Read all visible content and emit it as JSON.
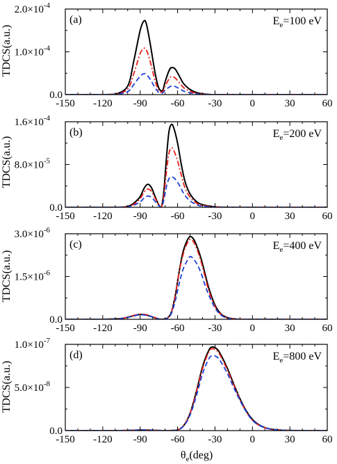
{
  "figure": {
    "ylabel": "TDCS(a.u.)",
    "xlabel_symbol": "θ",
    "xlabel_sub": "e",
    "xlabel_rest": "(deg)"
  },
  "chart_data": [
    {
      "type": "line",
      "panel_tag": "(a)",
      "energy": {
        "prefix": "E",
        "sub": "e",
        "suffix": "=100 eV"
      },
      "xlim": [
        -150,
        60
      ],
      "xticks": [
        -150,
        -120,
        -90,
        -60,
        -30,
        0,
        30,
        60
      ],
      "ylim": [
        0,
        0.0002
      ],
      "yticks": [
        {
          "value": 0,
          "mantissa": "0.0",
          "exp": ""
        },
        {
          "value": 0.0001,
          "mantissa": "1.0×10",
          "exp": "-4"
        },
        {
          "value": 0.0002,
          "mantissa": "2.0×10",
          "exp": "-4"
        }
      ],
      "series": [
        {
          "color": "#000000",
          "dash": "solid",
          "x": [
            -150,
            -120,
            -110,
            -100,
            -95,
            -90,
            -87,
            -85,
            -82,
            -78,
            -75,
            -72,
            -70,
            -67,
            -65,
            -62,
            -58,
            -55,
            -50,
            -45,
            -40,
            -30,
            0,
            60
          ],
          "y": [
            0,
            0,
            1e-06,
            2e-05,
            8e-05,
            0.00015,
            0.000172,
            0.000165,
            0.00012,
            5e-05,
            1.5e-05,
            1e-05,
            3e-05,
            5.5e-05,
            6.3e-05,
            6e-05,
            4e-05,
            2.5e-05,
            1.2e-05,
            5e-06,
            2e-06,
            0,
            0,
            0
          ]
        },
        {
          "color": "#e8211a",
          "dash": "dashdot",
          "x": [
            -150,
            -120,
            -110,
            -100,
            -95,
            -90,
            -87,
            -85,
            -82,
            -78,
            -75,
            -72,
            -70,
            -67,
            -65,
            -62,
            -58,
            -55,
            -50,
            -45,
            -40,
            -30,
            0,
            60
          ],
          "y": [
            0,
            0,
            7e-07,
            1.3e-05,
            5e-05,
            9.6e-05,
            0.000108,
            0.000104,
            7.8e-05,
            3.2e-05,
            9e-06,
            7e-06,
            2e-05,
            3.6e-05,
            4.2e-05,
            3.9e-05,
            2.6e-05,
            1.6e-05,
            8e-06,
            3e-06,
            1e-06,
            0,
            0,
            0
          ]
        },
        {
          "color": "#1f3fd6",
          "dash": "dashed",
          "x": [
            -150,
            -120,
            -110,
            -100,
            -95,
            -90,
            -87,
            -85,
            -82,
            -78,
            -75,
            -72,
            -70,
            -67,
            -65,
            -62,
            -58,
            -55,
            -50,
            -45,
            -40,
            -30,
            0,
            60
          ],
          "y": [
            0,
            0,
            4e-07,
            7e-06,
            2.4e-05,
            4.3e-05,
            4.9e-05,
            4.7e-05,
            3.6e-05,
            1.6e-05,
            5e-06,
            4e-06,
            1e-05,
            1.7e-05,
            2e-05,
            1.9e-05,
            1.3e-05,
            8e-06,
            4e-06,
            1.5e-06,
            5e-07,
            0,
            0,
            0
          ]
        }
      ]
    },
    {
      "type": "line",
      "panel_tag": "(b)",
      "energy": {
        "prefix": "E",
        "sub": "e",
        "suffix": "=200 eV"
      },
      "xlim": [
        -150,
        60
      ],
      "xticks": [
        -150,
        -120,
        -90,
        -60,
        -30,
        0,
        30,
        60
      ],
      "ylim": [
        0,
        0.00016
      ],
      "yticks": [
        {
          "value": 0,
          "mantissa": "0.0",
          "exp": ""
        },
        {
          "value": 8e-05,
          "mantissa": "8.0×10",
          "exp": "-5"
        },
        {
          "value": 0.00016,
          "mantissa": "1.6×10",
          "exp": "-4"
        }
      ],
      "series": [
        {
          "color": "#000000",
          "dash": "solid",
          "x": [
            -150,
            -110,
            -100,
            -95,
            -90,
            -87,
            -84,
            -81,
            -78,
            -75,
            -73,
            -71,
            -69,
            -67,
            -65,
            -63,
            -60,
            -57,
            -54,
            -50,
            -45,
            -40,
            -30,
            -20,
            0,
            60
          ],
          "y": [
            0,
            0,
            2e-06,
            8e-06,
            2e-05,
            3.5e-05,
            4.3e-05,
            3.7e-05,
            2e-05,
            4e-06,
            0,
            3e-05,
            9e-05,
            0.00014,
            0.000155,
            0.000148,
            0.00012,
            8e-05,
            4.8e-05,
            2.5e-05,
            1.1e-05,
            5e-06,
            1e-06,
            0,
            0,
            0
          ]
        },
        {
          "color": "#e8211a",
          "dash": "dashdot",
          "x": [
            -150,
            -110,
            -100,
            -95,
            -90,
            -87,
            -84,
            -81,
            -78,
            -75,
            -73,
            -71,
            -69,
            -67,
            -65,
            -63,
            -60,
            -57,
            -54,
            -50,
            -45,
            -40,
            -30,
            -20,
            0,
            60
          ],
          "y": [
            0,
            0,
            1.5e-06,
            6e-06,
            1.6e-05,
            2.8e-05,
            3.4e-05,
            3e-05,
            1.7e-05,
            4e-06,
            0,
            2.2e-05,
            6.5e-05,
            0.0001,
            0.000111,
            0.000106,
            8.7e-05,
            6e-05,
            3.6e-05,
            1.9e-05,
            8e-06,
            3.5e-06,
            1e-06,
            0,
            0,
            0
          ]
        },
        {
          "color": "#1f3fd6",
          "dash": "dashed",
          "x": [
            -150,
            -110,
            -100,
            -95,
            -90,
            -87,
            -84,
            -81,
            -78,
            -75,
            -73,
            -71,
            -69,
            -67,
            -65,
            -63,
            -60,
            -57,
            -54,
            -50,
            -45,
            -40,
            -30,
            -20,
            0,
            60
          ],
          "y": [
            0,
            0,
            1e-06,
            4e-06,
            1e-05,
            1.7e-05,
            2.1e-05,
            1.9e-05,
            1.1e-05,
            3e-06,
            0,
            1.4e-05,
            3.8e-05,
            5.3e-05,
            5.7e-05,
            5.5e-05,
            4.7e-05,
            3.4e-05,
            2.2e-05,
            1.2e-05,
            5e-06,
            2e-06,
            5e-07,
            0,
            0,
            0
          ]
        }
      ]
    },
    {
      "type": "line",
      "panel_tag": "(c)",
      "energy": {
        "prefix": "E",
        "sub": "e",
        "suffix": "=400 eV"
      },
      "xlim": [
        -150,
        60
      ],
      "xticks": [
        -150,
        -120,
        -90,
        -60,
        -30,
        0,
        30,
        60
      ],
      "ylim": [
        0,
        3e-06
      ],
      "yticks": [
        {
          "value": 0,
          "mantissa": "0.0",
          "exp": ""
        },
        {
          "value": 1.5e-06,
          "mantissa": "1.5×10",
          "exp": "-6"
        },
        {
          "value": 3e-06,
          "mantissa": "3.0×10",
          "exp": "-6"
        }
      ],
      "series": [
        {
          "color": "#000000",
          "dash": "solid",
          "x": [
            -150,
            -120,
            -105,
            -95,
            -90,
            -85,
            -80,
            -75,
            -72,
            -68,
            -65,
            -62,
            -59,
            -56,
            -53,
            -50,
            -47,
            -44,
            -41,
            -38,
            -35,
            -30,
            -25,
            -20,
            -15,
            -10,
            0,
            60
          ],
          "y": [
            0,
            0,
            3e-08,
            1.3e-07,
            1.7e-07,
            1.5e-07,
            8e-08,
            1e-08,
            0,
            5e-08,
            2.5e-07,
            8e-07,
            1.6e-06,
            2.3e-06,
            2.7e-06,
            2.9e-06,
            2.8e-06,
            2.5e-06,
            2.1e-06,
            1.6e-06,
            1.1e-06,
            5e-07,
            1.8e-07,
            6e-08,
            2e-08,
            0,
            0,
            0
          ]
        },
        {
          "color": "#e8211a",
          "dash": "dashdot",
          "x": [
            -150,
            -120,
            -105,
            -95,
            -90,
            -85,
            -80,
            -75,
            -72,
            -68,
            -65,
            -62,
            -59,
            -56,
            -53,
            -50,
            -47,
            -44,
            -41,
            -38,
            -35,
            -30,
            -25,
            -20,
            -15,
            -10,
            0,
            60
          ],
          "y": [
            0,
            0,
            3e-08,
            1.4e-07,
            1.8e-07,
            1.6e-07,
            9e-08,
            1e-08,
            0,
            5e-08,
            2.4e-07,
            7.7e-07,
            1.6e-06,
            2.2e-06,
            2.6e-06,
            2.8e-06,
            2.7e-06,
            2.4e-06,
            2e-06,
            1.5e-06,
            1e-06,
            4.5e-07,
            1.6e-07,
            5e-08,
            2e-08,
            0,
            0,
            0
          ]
        },
        {
          "color": "#1f3fd6",
          "dash": "dashed",
          "x": [
            -150,
            -120,
            -105,
            -95,
            -90,
            -85,
            -80,
            -75,
            -72,
            -68,
            -65,
            -62,
            -59,
            -56,
            -53,
            -50,
            -47,
            -44,
            -41,
            -38,
            -35,
            -30,
            -25,
            -20,
            -15,
            -10,
            0,
            60
          ],
          "y": [
            0,
            0,
            3e-08,
            1.2e-07,
            1.6e-07,
            1.4e-07,
            8e-08,
            1e-08,
            0,
            4e-08,
            2e-07,
            6.2e-07,
            1.2e-06,
            1.7e-06,
            2e-06,
            2.2e-06,
            2.1e-06,
            1.9e-06,
            1.6e-06,
            1.2e-06,
            8.5e-07,
            4e-07,
            1.4e-07,
            4e-08,
            1e-08,
            0,
            0,
            0
          ]
        }
      ]
    },
    {
      "type": "line",
      "panel_tag": "(d)",
      "energy": {
        "prefix": "E",
        "sub": "e",
        "suffix": "=800 eV"
      },
      "xlim": [
        -150,
        60
      ],
      "xticks": [
        -150,
        -120,
        -90,
        -60,
        -30,
        0,
        30,
        60
      ],
      "ylim": [
        0,
        1e-07
      ],
      "yticks": [
        {
          "value": 0,
          "mantissa": "0.0",
          "exp": ""
        },
        {
          "value": 5e-08,
          "mantissa": "5.0×10",
          "exp": "-8"
        },
        {
          "value": 1e-07,
          "mantissa": "1.0×10",
          "exp": "-7"
        }
      ],
      "series": [
        {
          "color": "#000000",
          "dash": "solid",
          "x": [
            -150,
            -110,
            -95,
            -88,
            -80,
            -70,
            -65,
            -60,
            -55,
            -50,
            -45,
            -40,
            -35,
            -32,
            -28,
            -25,
            -20,
            -15,
            -10,
            -5,
            0,
            5,
            10,
            15,
            20,
            30,
            45,
            60
          ],
          "y": [
            0,
            0,
            4e-10,
            8e-10,
            4e-10,
            0,
            1e-10,
            8e-10,
            6e-09,
            2e-08,
            4.5e-08,
            7.4e-08,
            9.3e-08,
            9.7e-08,
            9.4e-08,
            8.7e-08,
            7.2e-08,
            5.4e-08,
            3.7e-08,
            2.3e-08,
            1.3e-08,
            7e-09,
            3.5e-09,
            1.7e-09,
            8e-10,
            2e-10,
            0,
            0
          ]
        },
        {
          "color": "#e8211a",
          "dash": "dashdot",
          "x": [
            -150,
            -110,
            -95,
            -88,
            -80,
            -70,
            -65,
            -60,
            -55,
            -50,
            -45,
            -40,
            -35,
            -32,
            -28,
            -25,
            -20,
            -15,
            -10,
            -5,
            0,
            5,
            10,
            15,
            20,
            30,
            45,
            60
          ],
          "y": [
            0,
            0,
            4e-10,
            8e-10,
            4e-10,
            0,
            1e-10,
            8e-10,
            6e-09,
            2e-08,
            4.4e-08,
            7.2e-08,
            9.1e-08,
            9.5e-08,
            9.2e-08,
            8.5e-08,
            7e-08,
            5.3e-08,
            3.6e-08,
            2.2e-08,
            1.2e-08,
            6.5e-09,
            3.3e-09,
            1.6e-09,
            8e-10,
            2e-10,
            0,
            0
          ]
        },
        {
          "color": "#1f3fd6",
          "dash": "dashed",
          "x": [
            -150,
            -110,
            -95,
            -88,
            -80,
            -70,
            -65,
            -60,
            -55,
            -50,
            -45,
            -40,
            -35,
            -32,
            -28,
            -25,
            -20,
            -15,
            -10,
            -5,
            0,
            5,
            10,
            15,
            20,
            30,
            45,
            60
          ],
          "y": [
            0,
            0,
            4e-10,
            8e-10,
            4e-10,
            0,
            1e-10,
            7e-10,
            5.5e-09,
            1.8e-08,
            4e-08,
            6.6e-08,
            8.3e-08,
            8.7e-08,
            8.5e-08,
            7.9e-08,
            6.6e-08,
            5e-08,
            3.5e-08,
            2.2e-08,
            1.2e-08,
            6.5e-09,
            3.3e-09,
            1.6e-09,
            8e-10,
            2e-10,
            0,
            0
          ]
        }
      ]
    }
  ]
}
